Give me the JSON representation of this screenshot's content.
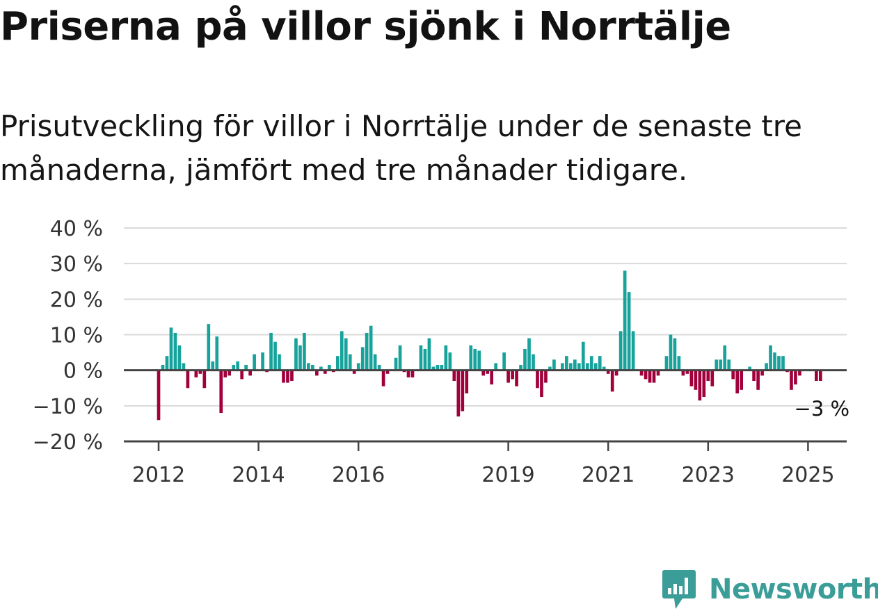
{
  "title": "Priserna på villor sjönk i Norrtälje",
  "subtitle": "Prisutveckling för villor i Norrtälje under de senaste tre månaderna, jämfört med tre månader tidigare.",
  "brand": {
    "name": "Newsworthy",
    "color": "#3a9d98",
    "icon": "bar-chart-speech-bubble-icon"
  },
  "colors": {
    "positive": "#17a29b",
    "negative": "#a1003b",
    "gridline": "#d9d9d9",
    "zeroline": "#444444",
    "text": "#333333"
  },
  "chart_data": {
    "type": "bar",
    "title": "",
    "xlabel": "",
    "ylabel": "",
    "ylim": [
      -20,
      40
    ],
    "y_ticks": [
      {
        "value": 40,
        "label": "40 %"
      },
      {
        "value": 30,
        "label": "30 %"
      },
      {
        "value": 20,
        "label": "20 %"
      },
      {
        "value": 10,
        "label": "10 %"
      },
      {
        "value": 0,
        "label": "0 %"
      },
      {
        "value": -10,
        "label": "−10 %"
      },
      {
        "value": -20,
        "label": "−20 %"
      }
    ],
    "x_ticks": [
      {
        "year": 2012,
        "label": "2012"
      },
      {
        "year": 2014,
        "label": "2014"
      },
      {
        "year": 2016,
        "label": "2016"
      },
      {
        "year": 2019,
        "label": "2019"
      },
      {
        "year": 2021,
        "label": "2021"
      },
      {
        "year": 2023,
        "label": "2023"
      },
      {
        "year": 2025,
        "label": "2025"
      }
    ],
    "start_month": "2012-01",
    "grid": true,
    "last_value_label": "−3 %",
    "values": [
      -14,
      1.5,
      4,
      12,
      10.5,
      7,
      2,
      -5,
      0,
      -2,
      -1,
      -5,
      13,
      2.5,
      9.5,
      -12,
      -2,
      -1.5,
      1.5,
      2.5,
      -2.5,
      1.5,
      -1.5,
      4.5,
      0,
      5,
      -0.5,
      10.5,
      8,
      4.5,
      -3.5,
      -3.5,
      -3,
      9,
      7,
      10.5,
      2,
      1.5,
      -1.5,
      1,
      -1,
      1.5,
      -0.5,
      4,
      11,
      9,
      4.5,
      -1,
      2,
      6.5,
      10.5,
      12.5,
      4.5,
      1.5,
      -4.5,
      -1,
      0,
      3.5,
      7,
      -0.5,
      -2,
      -2,
      0,
      7,
      6,
      9,
      1,
      1.5,
      1.5,
      7,
      5,
      -3,
      -13,
      -11.5,
      -6.5,
      7,
      6,
      5.5,
      -1.5,
      -1,
      -4,
      2,
      0,
      5,
      -3.5,
      -2.5,
      -4.5,
      1.5,
      6,
      9,
      4.5,
      -5,
      -7.5,
      -3.5,
      1,
      3,
      0,
      2,
      4,
      2,
      3,
      2,
      8,
      2,
      4,
      2,
      4,
      1,
      -1,
      -6,
      -1.5,
      11,
      28,
      22,
      11,
      0,
      -1.5,
      -2.5,
      -3.5,
      -3.5,
      -1.5,
      0,
      4,
      10,
      9,
      4,
      -1.5,
      -1,
      -4.5,
      -5.5,
      -8.5,
      -7.5,
      -3,
      -4.5,
      3,
      3,
      7,
      3,
      -2.5,
      -6.5,
      -5.5,
      0,
      1,
      -3,
      -5.5,
      -1.5,
      2,
      7,
      5,
      4,
      4,
      -0.5,
      -5.5,
      -4,
      -1.5,
      0,
      0,
      0,
      -3,
      -3
    ]
  }
}
